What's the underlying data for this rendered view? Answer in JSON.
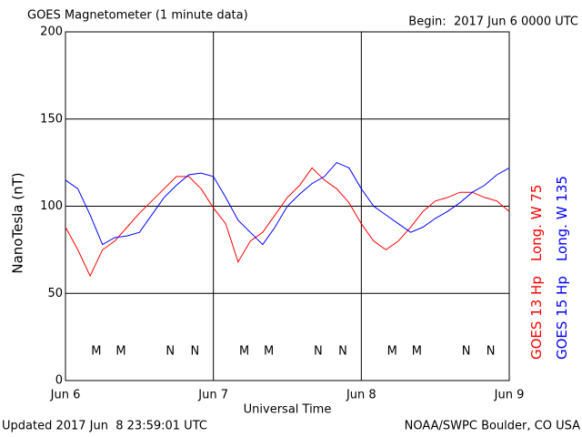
{
  "chart_data": {
    "type": "line",
    "title": "GOES Magnetometer (1 minute data)",
    "begin": "Begin:  2017 Jun 6 0000 UTC",
    "y_label": "NanoTesla (nT)",
    "x_label": "Universal Time",
    "updated": "Updated 2017 Jun  8 23:59:01 UTC",
    "source": "NOAA/SWPC Boulder, CO USA",
    "xlim": [
      0,
      72
    ],
    "xticks": [
      {
        "value": 0,
        "label": "Jun 6"
      },
      {
        "value": 24,
        "label": "Jun 7"
      },
      {
        "value": 48,
        "label": "Jun 8"
      },
      {
        "value": 72,
        "label": "Jun 9"
      }
    ],
    "ylim": [
      0,
      200
    ],
    "yticks": [
      0,
      50,
      100,
      150,
      200
    ],
    "grid": true,
    "x": [
      0,
      2,
      4,
      6,
      8,
      10,
      12,
      14,
      16,
      18,
      20,
      22,
      24,
      26,
      28,
      30,
      32,
      34,
      36,
      38,
      40,
      42,
      44,
      46,
      48,
      50,
      52,
      54,
      56,
      58,
      60,
      62,
      64,
      66,
      68,
      70,
      72
    ],
    "series": [
      {
        "name": "GOES 13 Hp",
        "location": "Long. W 75",
        "color": "#ff0000",
        "values": [
          88,
          75,
          60,
          75,
          80,
          88,
          96,
          103,
          110,
          117,
          117,
          110,
          99,
          90,
          68,
          80,
          85,
          95,
          105,
          112,
          122,
          115,
          110,
          102,
          90,
          80,
          75,
          80,
          88,
          97,
          103,
          105,
          108,
          108,
          105,
          103,
          97
        ]
      },
      {
        "name": "GOES 15 Hp",
        "location": "Long. W 135",
        "color": "#0000ff",
        "values": [
          115,
          110,
          95,
          78,
          82,
          83,
          85,
          95,
          105,
          112,
          118,
          119,
          117,
          105,
          92,
          85,
          78,
          88,
          100,
          107,
          113,
          117,
          125,
          122,
          110,
          100,
          95,
          90,
          85,
          88,
          93,
          97,
          102,
          108,
          112,
          118,
          122
        ]
      }
    ],
    "markers": [
      {
        "label": "M",
        "color": "#ff0000",
        "x": [
          5,
          29,
          53
        ]
      },
      {
        "label": "M",
        "color": "#0000ff",
        "x": [
          9,
          33,
          57
        ]
      },
      {
        "label": "N",
        "color": "#ff0000",
        "x": [
          17,
          41,
          65
        ]
      },
      {
        "label": "N",
        "color": "#0000ff",
        "x": [
          21,
          45,
          69
        ]
      }
    ]
  }
}
